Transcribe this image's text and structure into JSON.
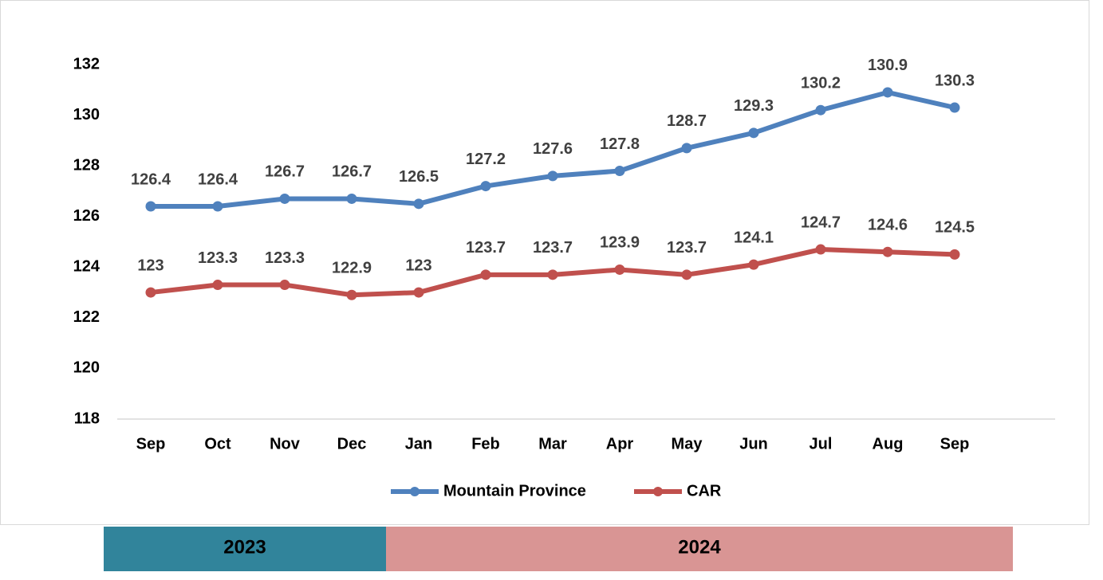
{
  "chart_data": {
    "type": "line",
    "categories": [
      "Sep",
      "Oct",
      "Nov",
      "Dec",
      "Jan",
      "Feb",
      "Mar",
      "Apr",
      "May",
      "Jun",
      "Jul",
      "Aug",
      "Sep"
    ],
    "series": [
      {
        "name": "Mountain Province",
        "color": "#4f81bd",
        "values": [
          126.4,
          126.4,
          126.7,
          126.7,
          126.5,
          127.2,
          127.6,
          127.8,
          128.7,
          129.3,
          130.2,
          130.9,
          130.3
        ]
      },
      {
        "name": "CAR",
        "color": "#c0504d",
        "values": [
          123,
          123.3,
          123.3,
          122.9,
          123,
          123.7,
          123.7,
          123.9,
          123.7,
          124.1,
          124.7,
          124.6,
          124.5
        ]
      }
    ],
    "ylim": [
      118,
      132
    ],
    "yticks": [
      118,
      120,
      122,
      124,
      126,
      128,
      130,
      132
    ],
    "grid": false,
    "legend": "bottom",
    "year_bands": [
      {
        "label": "2023",
        "color": "#31849b"
      },
      {
        "label": "2024",
        "color": "#d99594"
      }
    ]
  }
}
